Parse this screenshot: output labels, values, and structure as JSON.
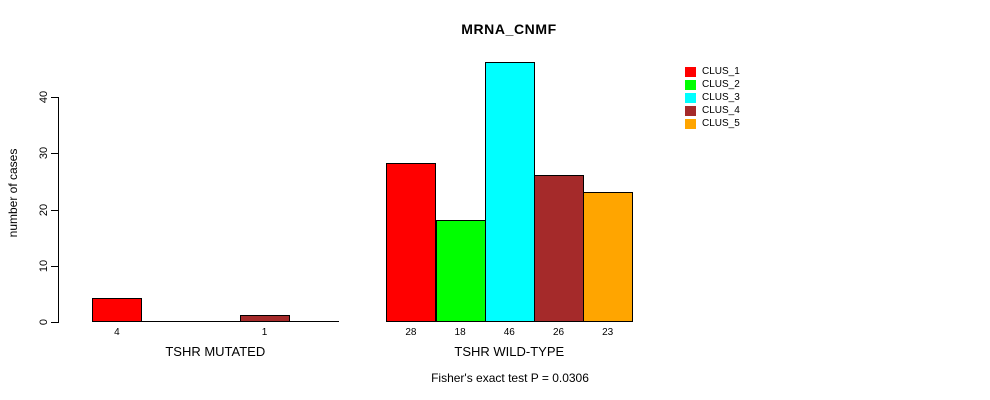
{
  "title": "MRNA_CNMF",
  "subtitle": "Fisher's exact test P = 0.0306",
  "chart_data": {
    "type": "bar",
    "title": "MRNA_CNMF",
    "xlabel": "",
    "ylabel": "number of cases",
    "ylim": [
      0,
      46
    ],
    "yticks": [
      0,
      10,
      20,
      30,
      40
    ],
    "grid": false,
    "legend_position": "right-outside",
    "series": [
      {
        "name": "CLUS_1",
        "color": "#FF0000"
      },
      {
        "name": "CLUS_2",
        "color": "#00FF00"
      },
      {
        "name": "CLUS_3",
        "color": "#00FFFF"
      },
      {
        "name": "CLUS_4",
        "color": "#A52A2A"
      },
      {
        "name": "CLUS_5",
        "color": "#FFA500"
      }
    ],
    "groups": [
      {
        "label": "TSHR MUTATED",
        "values": [
          4,
          0,
          0,
          1,
          0
        ]
      },
      {
        "label": "TSHR WILD-TYPE",
        "values": [
          28,
          18,
          46,
          26,
          23
        ]
      }
    ],
    "value_label_rule": "nonzero-only",
    "annotation": "Fisher's exact test P = 0.0306"
  }
}
